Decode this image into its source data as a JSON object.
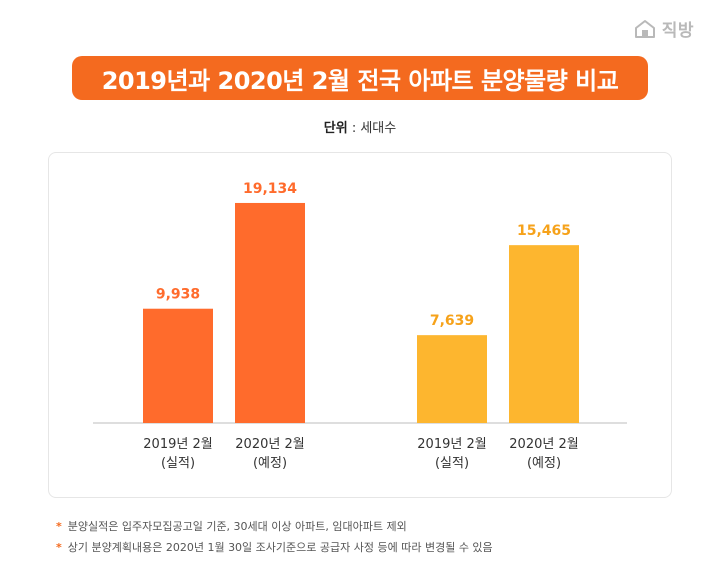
{
  "logo": {
    "text": "직방",
    "icon": "house-icon"
  },
  "title": "2019년과 2020년 2월 전국 아파트 분양물량 비교",
  "unit": {
    "label": "단위",
    "separator": " : ",
    "value": "세대수"
  },
  "colors": {
    "banner": "#f46a1f",
    "orange_bar": "#ff6b2c",
    "orange_label": "#ff6b2c",
    "yellow_bar": "#fdb62f",
    "yellow_label": "#f6a21a",
    "baseline": "#bdbdbd"
  },
  "chart_data": {
    "type": "bar",
    "ylim": [
      0,
      20000
    ],
    "grid": false,
    "groups": [
      {
        "color": "#ff6b2c",
        "bars": [
          {
            "label_line1": "2019년 2월",
            "label_line2": "(실적)",
            "value": 9938,
            "value_label": "9,938"
          },
          {
            "label_line1": "2020년 2월",
            "label_line2": "(예정)",
            "value": 19134,
            "value_label": "19,134"
          }
        ]
      },
      {
        "color": "#fdb62f",
        "bars": [
          {
            "label_line1": "2019년 2월",
            "label_line2": "(실적)",
            "value": 7639,
            "value_label": "7,639"
          },
          {
            "label_line1": "2020년 2월",
            "label_line2": "(예정)",
            "value": 15465,
            "value_label": "15,465"
          }
        ]
      }
    ]
  },
  "footnotes": [
    {
      "mark": "*",
      "text": "분양실적은 입주자모집공고일 기준, 30세대 이상 아파트, 임대아파트 제외"
    },
    {
      "mark": "*",
      "text": "상기 분양계획내용은 2020년 1월 30일 조사기준으로 공급자 사정 등에 따라 변경될 수 있음"
    }
  ]
}
